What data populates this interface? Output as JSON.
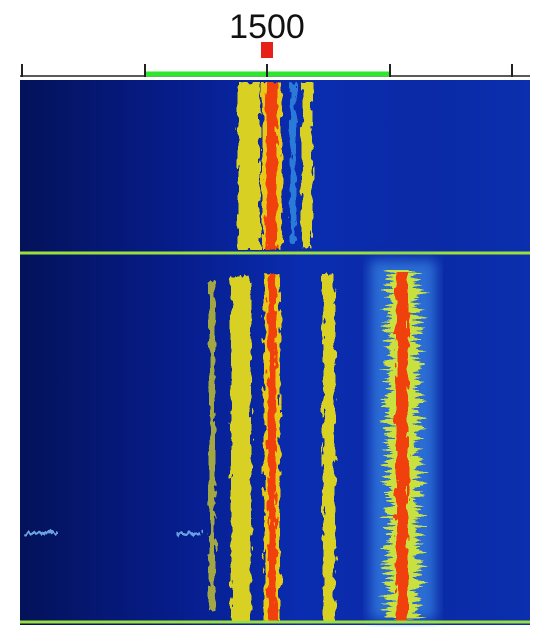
{
  "scale": {
    "label": "1500"
  }
}
